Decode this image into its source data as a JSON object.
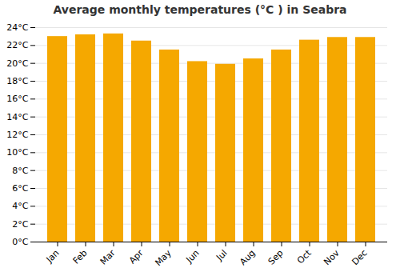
{
  "chart_data": {
    "type": "bar",
    "title": "Average monthly temperatures (°C ) in Seabra",
    "categories": [
      "Jan",
      "Feb",
      "Mar",
      "Apr",
      "May",
      "Jun",
      "Jul",
      "Aug",
      "Sep",
      "Oct",
      "Nov",
      "Dec"
    ],
    "values": [
      23.0,
      23.2,
      23.3,
      22.5,
      21.5,
      20.2,
      19.9,
      20.5,
      21.5,
      22.6,
      22.9,
      22.9
    ],
    "color": "#F5A800",
    "ylim": [
      0,
      24
    ],
    "yticks": [
      {
        "value": 0,
        "label": "0°C"
      },
      {
        "value": 2,
        "label": "2°C"
      },
      {
        "value": 4,
        "label": "4°C"
      },
      {
        "value": 6,
        "label": "6°C"
      },
      {
        "value": 8,
        "label": "8°C"
      },
      {
        "value": 10,
        "label": "10°C"
      },
      {
        "value": 12,
        "label": "12°C"
      },
      {
        "value": 14,
        "label": "14°C"
      },
      {
        "value": 16,
        "label": "16°C"
      },
      {
        "value": 18,
        "label": "18°C"
      },
      {
        "value": 20,
        "label": "20°C"
      },
      {
        "value": 22,
        "label": "22°C"
      },
      {
        "value": 24,
        "label": "24°C"
      }
    ],
    "grid": true
  }
}
